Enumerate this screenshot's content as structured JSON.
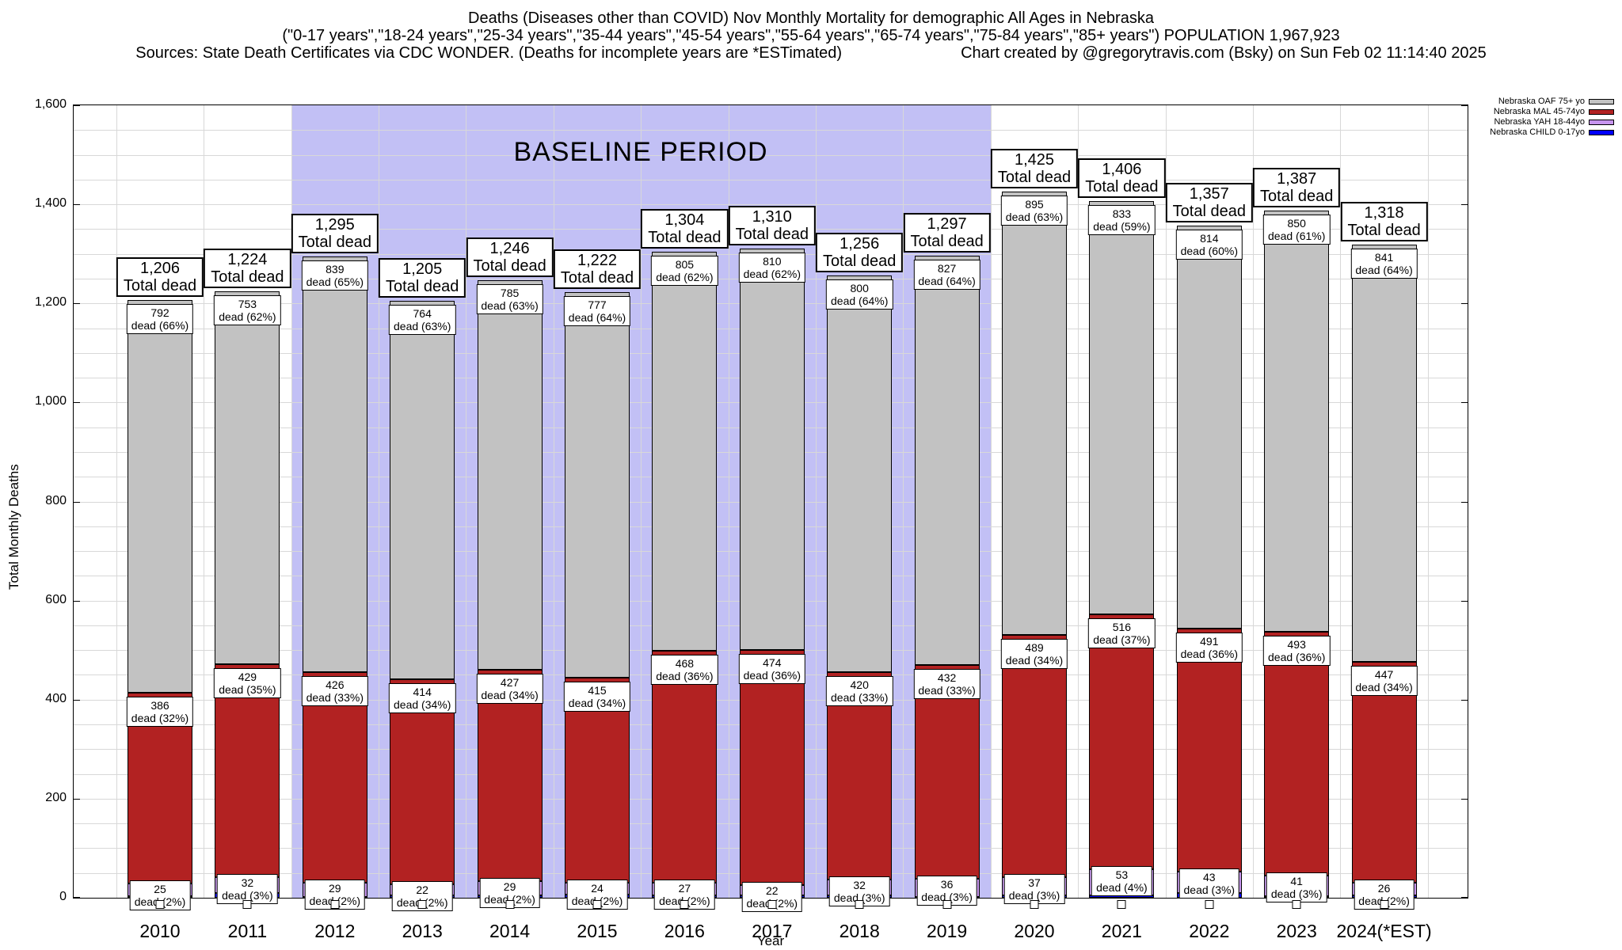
{
  "header": {
    "title_line1": "Deaths (Diseases other than COVID) Nov Monthly Mortality for demographic All Ages in Nebraska",
    "title_line2": "(\"0-17 years\",\"18-24 years\",\"25-34 years\",\"35-44 years\",\"45-54 years\",\"55-64 years\",\"65-74 years\",\"75-84 years\",\"85+ years\") POPULATION 1,967,923",
    "sources": "Sources: State Death Certificates via CDC WONDER. (Deaths for incomplete years are *ESTimated)",
    "credit": "Chart created by @gregorytravis.com (Bsky) on Sun Feb 02 11:14:40 2025"
  },
  "legend": {
    "items": [
      {
        "label": "Nebraska OAF 75+ yo",
        "color": "#c2c2c2"
      },
      {
        "label": "Nebraska MAL 45-74yo",
        "color": "#b22222"
      },
      {
        "label": "Nebraska YAH 18-44yo",
        "color": "#c795ee"
      },
      {
        "label": "Nebraska CHILD 0-17yo",
        "color": "#0000ff"
      }
    ]
  },
  "axes": {
    "y_title": "Total Monthly Deaths",
    "x_title": "Year",
    "y_max": 1600,
    "y_major_step": 200,
    "y_minor_step": 50,
    "y_tick_labels": [
      "0",
      "200",
      "400",
      "600",
      "800",
      "1,000",
      "1,200",
      "1,400",
      "1,600"
    ]
  },
  "annotations": {
    "baseline_label": "BASELINE PERIOD",
    "baseline_start_year": "2012",
    "baseline_end_year": "2019",
    "baseline_band_color": "#c2c0f5"
  },
  "chart_data": {
    "type": "bar",
    "stacked": true,
    "title": "Deaths (Diseases other than COVID) Nov Monthly Mortality for demographic All Ages in Nebraska",
    "xlabel": "Year",
    "ylabel": "Total Monthly Deaths",
    "ylim": [
      0,
      1600
    ],
    "grid": true,
    "legend_position": "top-right-outside",
    "categories": [
      "2010",
      "2011",
      "2012",
      "2013",
      "2014",
      "2015",
      "2016",
      "2017",
      "2018",
      "2019",
      "2020",
      "2021",
      "2022",
      "2023",
      "2024(*EST)"
    ],
    "totals": [
      1206,
      1224,
      1295,
      1205,
      1246,
      1222,
      1304,
      1310,
      1256,
      1297,
      1425,
      1406,
      1357,
      1387,
      1318
    ],
    "total_label_suffix": "Total dead",
    "segment_label_word": "dead",
    "series": [
      {
        "name": "Nebraska CHILD 0-17yo",
        "color": "#0000ff",
        "labeled": false,
        "values": [
          3,
          10,
          1,
          5,
          5,
          6,
          4,
          4,
          4,
          2,
          4,
          4,
          9,
          3,
          4
        ],
        "derived_from_stack_remainder": true
      },
      {
        "name": "Nebraska YAH 18-44yo",
        "color": "#c795ee",
        "labeled": true,
        "values": [
          25,
          32,
          29,
          22,
          29,
          24,
          27,
          22,
          32,
          36,
          37,
          53,
          43,
          41,
          26
        ],
        "pcts": [
          2,
          3,
          2,
          2,
          2,
          2,
          2,
          2,
          3,
          3,
          3,
          4,
          3,
          3,
          2
        ]
      },
      {
        "name": "Nebraska MAL 45-74yo",
        "color": "#b22222",
        "labeled": true,
        "values": [
          386,
          429,
          426,
          414,
          427,
          415,
          468,
          474,
          420,
          432,
          489,
          516,
          491,
          493,
          447
        ],
        "pcts": [
          32,
          35,
          33,
          34,
          34,
          34,
          36,
          36,
          33,
          33,
          34,
          37,
          36,
          36,
          34
        ]
      },
      {
        "name": "Nebraska OAF 75+ yo",
        "color": "#c2c2c2",
        "labeled": true,
        "values": [
          792,
          753,
          839,
          764,
          785,
          777,
          805,
          810,
          800,
          827,
          895,
          833,
          814,
          850,
          841
        ],
        "pcts": [
          66,
          62,
          65,
          63,
          63,
          64,
          62,
          62,
          64,
          64,
          63,
          59,
          60,
          61,
          64
        ]
      }
    ],
    "baseline_band_category_range": [
      2,
      9
    ]
  }
}
